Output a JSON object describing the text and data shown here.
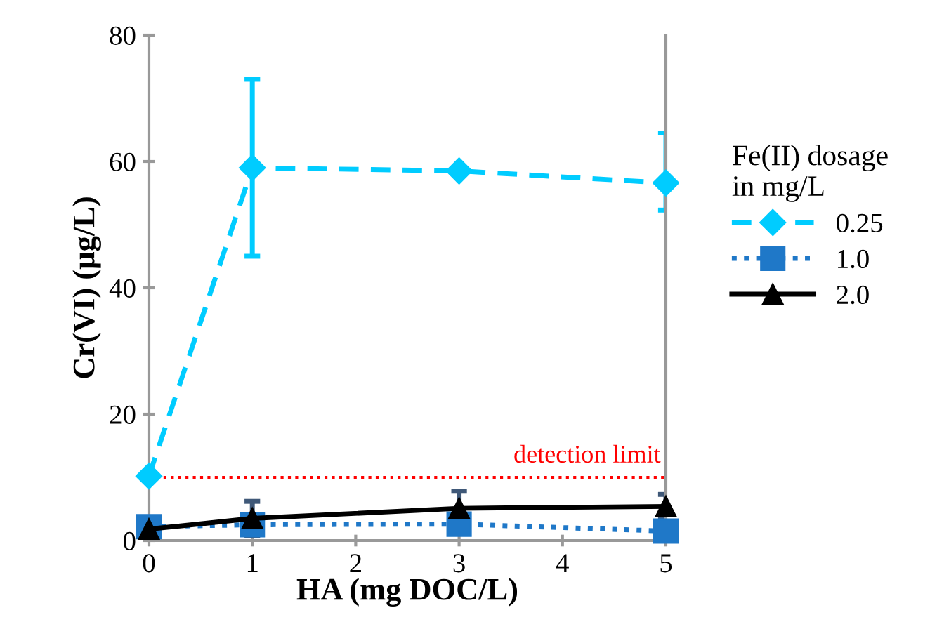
{
  "chart_data": {
    "type": "line",
    "xlabel": "HA (mg DOC/L)",
    "ylabel": "Cr(VI) (µg/L)",
    "legend_title": "Fe(II) dosage\nin mg/L",
    "x": [
      0,
      1,
      3,
      5
    ],
    "series": [
      {
        "name": "0.25",
        "color": "#00ccff",
        "values": [
          10.2,
          59,
          58.5,
          56.6
        ],
        "errors": [
          null,
          [
            45,
            73
          ],
          null,
          [
            52.3,
            64.5
          ]
        ],
        "marker": "diamond",
        "line_style": "dashed"
      },
      {
        "name": "1.0",
        "color": "#1f78c8",
        "values": [
          2.2,
          2.5,
          2.6,
          1.5
        ],
        "errors": [
          null,
          1.5,
          null,
          null
        ],
        "marker": "square",
        "line_style": "dotted"
      },
      {
        "name": "2.0",
        "color": "#000000",
        "values": [
          1.8,
          3.5,
          5.1,
          5.4
        ],
        "errors": [
          null,
          2.7,
          2.7,
          1.9
        ],
        "marker": "triangle",
        "line_style": "solid"
      }
    ],
    "xlim": [
      0,
      5
    ],
    "xticks": [
      0,
      1,
      2,
      3,
      4,
      5
    ],
    "ylim": [
      0,
      80
    ],
    "yticks": [
      0,
      20,
      40,
      60,
      80
    ],
    "ref_lines": [
      {
        "axis": "y",
        "value": 10,
        "label": "detection limit",
        "color": "#ff0000",
        "line_style": "dotted"
      }
    ],
    "grid": false,
    "legend": "right"
  }
}
